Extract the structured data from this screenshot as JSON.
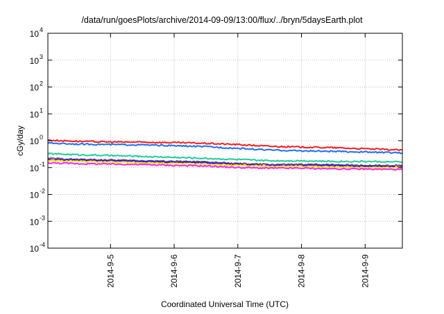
{
  "chart_data": {
    "type": "line",
    "title": "/data/run/goesPlots/archive/2014-09-09/13:00/flux/../bryn/5daysEarth.plot",
    "xlabel": "Coordinated Universal Time (UTC)",
    "ylabel": "cGy/day",
    "yscale": "log",
    "ylim": [
      0.0001,
      10000
    ],
    "xlim_days_since_2014-09-04": [
      0.016,
      5.585
    ],
    "grid": true,
    "legend": "none",
    "y_ticks": [
      {
        "value": 0.0001,
        "base": "10",
        "exp": "-4"
      },
      {
        "value": 0.001,
        "base": "10",
        "exp": "-3"
      },
      {
        "value": 0.01,
        "base": "10",
        "exp": "-2"
      },
      {
        "value": 0.1,
        "base": "10",
        "exp": "-1"
      },
      {
        "value": 1,
        "base": "10",
        "exp": "0"
      },
      {
        "value": 10,
        "base": "10",
        "exp": "1"
      },
      {
        "value": 100,
        "base": "10",
        "exp": "2"
      },
      {
        "value": 1000,
        "base": "10",
        "exp": "3"
      },
      {
        "value": 10000,
        "base": "10",
        "exp": "4"
      }
    ],
    "x_ticks": [
      {
        "value": 1,
        "label": "2014-9-5"
      },
      {
        "value": 2,
        "label": "2014-9-6"
      },
      {
        "value": 3,
        "label": "2014-9-7"
      },
      {
        "value": 4,
        "label": "2014-9-8"
      },
      {
        "value": 5,
        "label": "2014-9-9"
      }
    ],
    "x": [
      0.02,
      0.5,
      1.0,
      1.5,
      2.0,
      2.5,
      3.0,
      3.5,
      4.0,
      4.5,
      5.0,
      5.58
    ],
    "series": [
      {
        "name": "red",
        "color": "#ff1a1a",
        "values": [
          1.05,
          0.95,
          0.9,
          0.88,
          0.85,
          0.8,
          0.72,
          0.62,
          0.58,
          0.55,
          0.5,
          0.45
        ]
      },
      {
        "name": "blue",
        "color": "#1a6fff",
        "values": [
          0.82,
          0.75,
          0.72,
          0.7,
          0.65,
          0.6,
          0.52,
          0.45,
          0.42,
          0.4,
          0.38,
          0.35
        ]
      },
      {
        "name": "green",
        "color": "#20cc99",
        "values": [
          0.33,
          0.3,
          0.28,
          0.26,
          0.24,
          0.22,
          0.2,
          0.18,
          0.18,
          0.17,
          0.17,
          0.16
        ]
      },
      {
        "name": "purple",
        "color": "#8a3d8a",
        "values": [
          0.22,
          0.2,
          0.19,
          0.18,
          0.17,
          0.16,
          0.14,
          0.13,
          0.13,
          0.13,
          0.12,
          0.12
        ]
      },
      {
        "name": "dark-blue",
        "color": "#2222cc",
        "values": [
          0.2,
          0.19,
          0.18,
          0.17,
          0.16,
          0.15,
          0.13,
          0.12,
          0.12,
          0.12,
          0.11,
          0.11
        ]
      },
      {
        "name": "yellow",
        "color": "#ffee00",
        "values": [
          0.18,
          0.17,
          0.16,
          0.15,
          0.14,
          0.13,
          0.12,
          0.11,
          0.11,
          0.105,
          0.1,
          0.1
        ]
      },
      {
        "name": "magenta",
        "color": "#ff22ff",
        "values": [
          0.15,
          0.14,
          0.135,
          0.13,
          0.12,
          0.115,
          0.1,
          0.095,
          0.095,
          0.09,
          0.088,
          0.085
        ]
      }
    ]
  }
}
